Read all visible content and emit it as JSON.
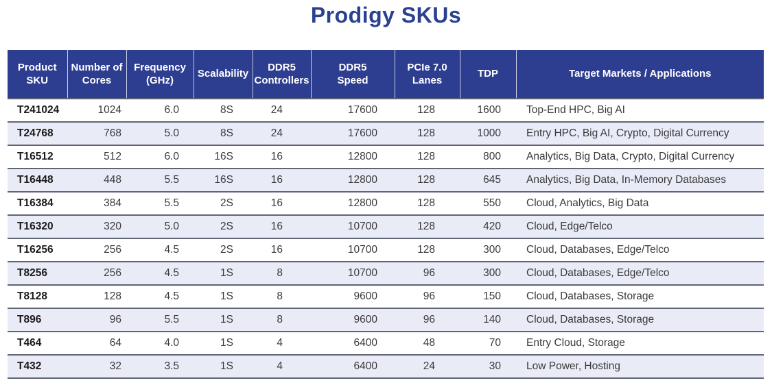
{
  "title": "Prodigy SKUs",
  "colors": {
    "title_text": "#2a4191",
    "header_bg": "#2d3d90",
    "header_text": "#ffffff",
    "row_bg": "#ffffff",
    "row_alt_bg": "#e9ebf7",
    "row_border": "#5e6375",
    "sku_text": "#1b1b1b",
    "cell_text": "#3a3a3a"
  },
  "table": {
    "columns": [
      {
        "id": "product-sku",
        "label": "Product\nSKU"
      },
      {
        "id": "cores",
        "label": "Number of\nCores"
      },
      {
        "id": "frequency",
        "label": "Frequency\n(GHz)"
      },
      {
        "id": "scalability",
        "label": "Scalability"
      },
      {
        "id": "ddr5-controllers",
        "label": "DDR5\nControllers"
      },
      {
        "id": "ddr5-speed",
        "label": "DDR5\nSpeed"
      },
      {
        "id": "pcie-lanes",
        "label": "PCIe 7.0\nLanes"
      },
      {
        "id": "tdp",
        "label": "TDP"
      },
      {
        "id": "target-markets",
        "label": "Target Markets / Applications"
      }
    ],
    "rows": [
      [
        "T241024",
        "1024",
        "6.0",
        "8S",
        "24",
        "17600",
        "128",
        "1600",
        "Top-End HPC, Big AI"
      ],
      [
        "T24768",
        "768",
        "5.0",
        "8S",
        "24",
        "17600",
        "128",
        "1000",
        "Entry HPC, Big AI, Crypto, Digital Currency"
      ],
      [
        "T16512",
        "512",
        "6.0",
        "16S",
        "16",
        "12800",
        "128",
        "800",
        "Analytics, Big Data, Crypto, Digital Currency"
      ],
      [
        "T16448",
        "448",
        "5.5",
        "16S",
        "16",
        "12800",
        "128",
        "645",
        "Analytics, Big Data, In-Memory Databases"
      ],
      [
        "T16384",
        "384",
        "5.5",
        "2S",
        "16",
        "12800",
        "128",
        "550",
        "Cloud, Analytics, Big Data"
      ],
      [
        "T16320",
        "320",
        "5.0",
        "2S",
        "16",
        "10700",
        "128",
        "420",
        "Cloud, Edge/Telco"
      ],
      [
        "T16256",
        "256",
        "4.5",
        "2S",
        "16",
        "10700",
        "128",
        "300",
        "Cloud, Databases, Edge/Telco"
      ],
      [
        "T8256",
        "256",
        "4.5",
        "1S",
        "8",
        "10700",
        "96",
        "300",
        "Cloud, Databases, Edge/Telco"
      ],
      [
        "T8128",
        "128",
        "4.5",
        "1S",
        "8",
        "9600",
        "96",
        "150",
        "Cloud, Databases, Storage"
      ],
      [
        "T896",
        "96",
        "5.5",
        "1S",
        "8",
        "9600",
        "96",
        "140",
        "Cloud, Databases, Storage"
      ],
      [
        "T464",
        "64",
        "4.0",
        "1S",
        "4",
        "6400",
        "48",
        "70",
        "Entry Cloud, Storage"
      ],
      [
        "T432",
        "32",
        "3.5",
        "1S",
        "4",
        "6400",
        "24",
        "30",
        "Low Power, Hosting"
      ]
    ]
  }
}
